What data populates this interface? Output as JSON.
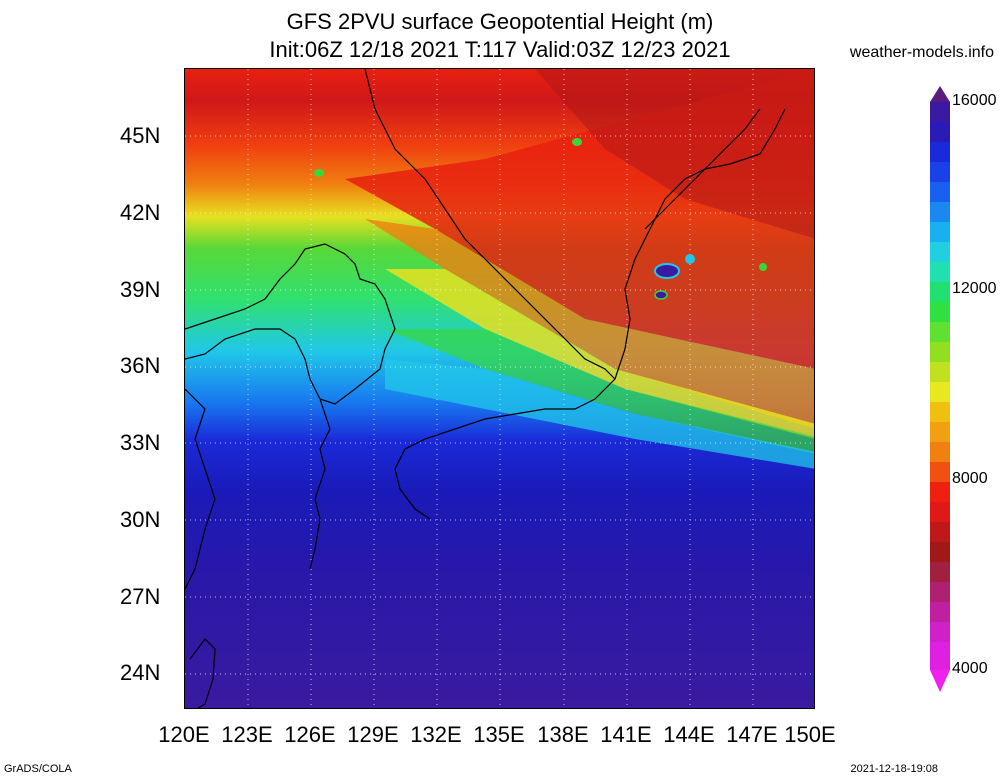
{
  "title_line1": "GFS 2PVU surface Geopotential Height (m)",
  "title_line2": "Init:06Z 12/18 2021 T:117 Valid:03Z 12/23 2021",
  "brand": "weather-models.info",
  "lat_labels": [
    "45N",
    "42N",
    "39N",
    "36N",
    "33N",
    "30N",
    "27N",
    "24N"
  ],
  "lon_labels": [
    "120E",
    "123E",
    "126E",
    "129E",
    "132E",
    "135E",
    "138E",
    "141E",
    "144E",
    "147E",
    "150E"
  ],
  "colorbar_labels": [
    "16000",
    "12000",
    "8000",
    "4000"
  ],
  "colors": {
    "band_purple": "#3a1aa0",
    "band_blue": "#1a2ad8",
    "band_cyan": "#20c8e8",
    "band_green": "#38d838",
    "band_yellow": "#e8e020",
    "band_orange": "#f08010",
    "band_red": "#e82010",
    "band_darkred": "#b01818"
  },
  "footer_left": "GrADS/COLA",
  "footer_right": "2021-12-18-19:08"
}
